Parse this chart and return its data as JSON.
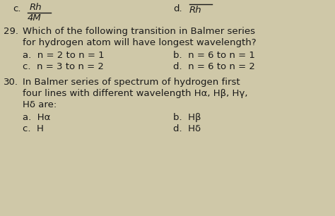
{
  "background_color": "#cfc8a8",
  "font_color": "#1a1a1a",
  "fontsize": 9.5,
  "fig_width": 4.74,
  "fig_height": 3.06,
  "dpi": 100,
  "top_c_label": "c.",
  "top_c_num": "Rh",
  "top_c_den": "4M",
  "top_d_label": "d.",
  "top_d_text": "Rh",
  "q29_num": "29.",
  "q29_line1": "Which of the following transition in Balmer series",
  "q29_line2": "for hydrogen atom will have longest wavelength?",
  "q29_a": "a.  n = 2 to n = 1",
  "q29_b": "b.  n = 6 to n = 1",
  "q29_c": "c.  n = 3 to n = 2",
  "q29_d": "d.  n = 6 to n = 2",
  "q30_num": "30.",
  "q30_line1": "In Balmer series of spectrum of hydrogen first",
  "q30_line2a": "four lines with different wavelength H",
  "q30_line2b": "α",
  "q30_line2c": ", H",
  "q30_line2d": "β",
  "q30_line2e": ", H",
  "q30_line2f": "γ",
  "q30_line2g": ",",
  "q30_line3a": "H",
  "q30_line3b": "δ",
  "q30_line3c": " are:",
  "q30_a_main": "H",
  "q30_a_sub": "α",
  "q30_b_main": "H",
  "q30_b_sub": "β",
  "q30_c_main": "H",
  "q30_c_sub": "",
  "q30_d_main": "H",
  "q30_d_sub": "δ"
}
